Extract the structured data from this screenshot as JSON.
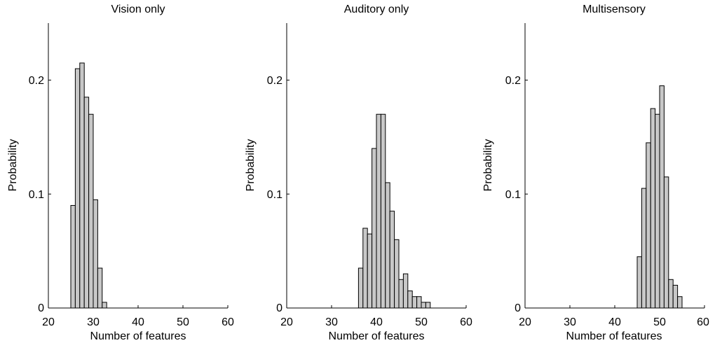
{
  "chart_data": [
    {
      "type": "bar",
      "title": "Vision only",
      "xlabel": "Number of features",
      "ylabel": "Probability",
      "xlim": [
        20,
        60
      ],
      "ylim": [
        0,
        0.25
      ],
      "xticks": [
        "20",
        "30",
        "40",
        "50",
        "60"
      ],
      "yticks": [
        "0",
        "0.1",
        "0.2"
      ],
      "bar_color": "#c8c8c8",
      "bin_width": 1,
      "x": [
        25,
        26,
        27,
        28,
        29,
        30,
        31,
        32
      ],
      "values": [
        0.09,
        0.21,
        0.215,
        0.185,
        0.17,
        0.095,
        0.035,
        0.005
      ]
    },
    {
      "type": "bar",
      "title": "Auditory only",
      "xlabel": "Number of features",
      "ylabel": "Probability",
      "xlim": [
        20,
        60
      ],
      "ylim": [
        0,
        0.25
      ],
      "xticks": [
        "20",
        "30",
        "40",
        "50",
        "60"
      ],
      "yticks": [
        "0",
        "0.1",
        "0.2"
      ],
      "bar_color": "#c8c8c8",
      "bin_width": 1,
      "x": [
        36,
        37,
        38,
        39,
        40,
        41,
        42,
        43,
        44,
        45,
        46,
        47,
        48,
        49,
        50,
        51
      ],
      "values": [
        0.035,
        0.07,
        0.065,
        0.14,
        0.17,
        0.17,
        0.11,
        0.085,
        0.06,
        0.025,
        0.03,
        0.015,
        0.01,
        0.01,
        0.005,
        0.005
      ]
    },
    {
      "type": "bar",
      "title": "Multisensory",
      "xlabel": "Number of features",
      "ylabel": "Probability",
      "xlim": [
        20,
        60
      ],
      "ylim": [
        0,
        0.25
      ],
      "xticks": [
        "20",
        "30",
        "40",
        "50",
        "60"
      ],
      "yticks": [
        "0",
        "0.1",
        "0.2"
      ],
      "bar_color": "#c8c8c8",
      "bin_width": 1,
      "x": [
        45,
        46,
        47,
        48,
        49,
        50,
        51,
        52,
        53,
        54,
        55
      ],
      "values": [
        0.045,
        0.105,
        0.145,
        0.175,
        0.17,
        0.195,
        0.115,
        0.025,
        0.02,
        0.01,
        0.0
      ]
    }
  ]
}
